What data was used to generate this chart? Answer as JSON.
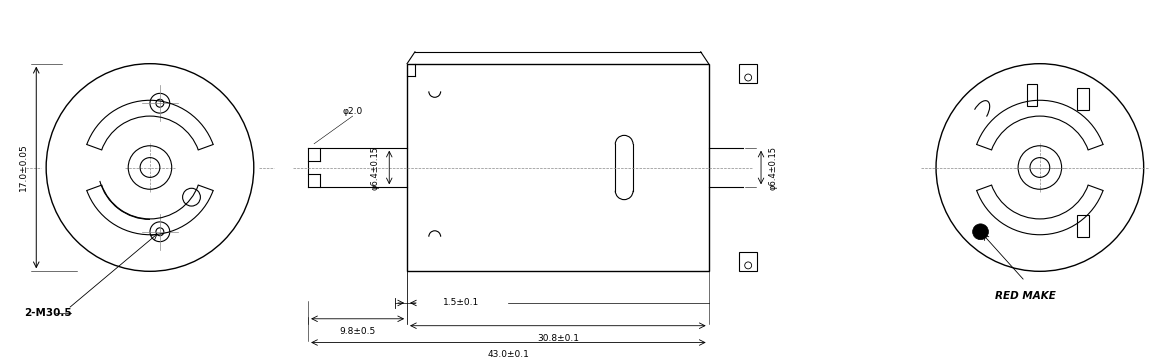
{
  "bg_color": "#ffffff",
  "line_color": "#000000",
  "dim_color": "#333333",
  "centerline_color": "#888888",
  "figsize": [
    11.75,
    3.63
  ],
  "dpi": 100,
  "annotations": {
    "dim_17": "17.0±0.05",
    "dim_2M30": "2-M30.5",
    "dim_phi2": "φ2.0",
    "dim_phi64_left": "φ6.4±0.15",
    "dim_phi64_right": "φ6.4±0.15",
    "dim_15": "1.5±0.1",
    "dim_98": "9.8±0.5",
    "dim_308": "30.8±0.1",
    "dim_430": "43.0±0.1",
    "red_make": "RED MAKE"
  }
}
